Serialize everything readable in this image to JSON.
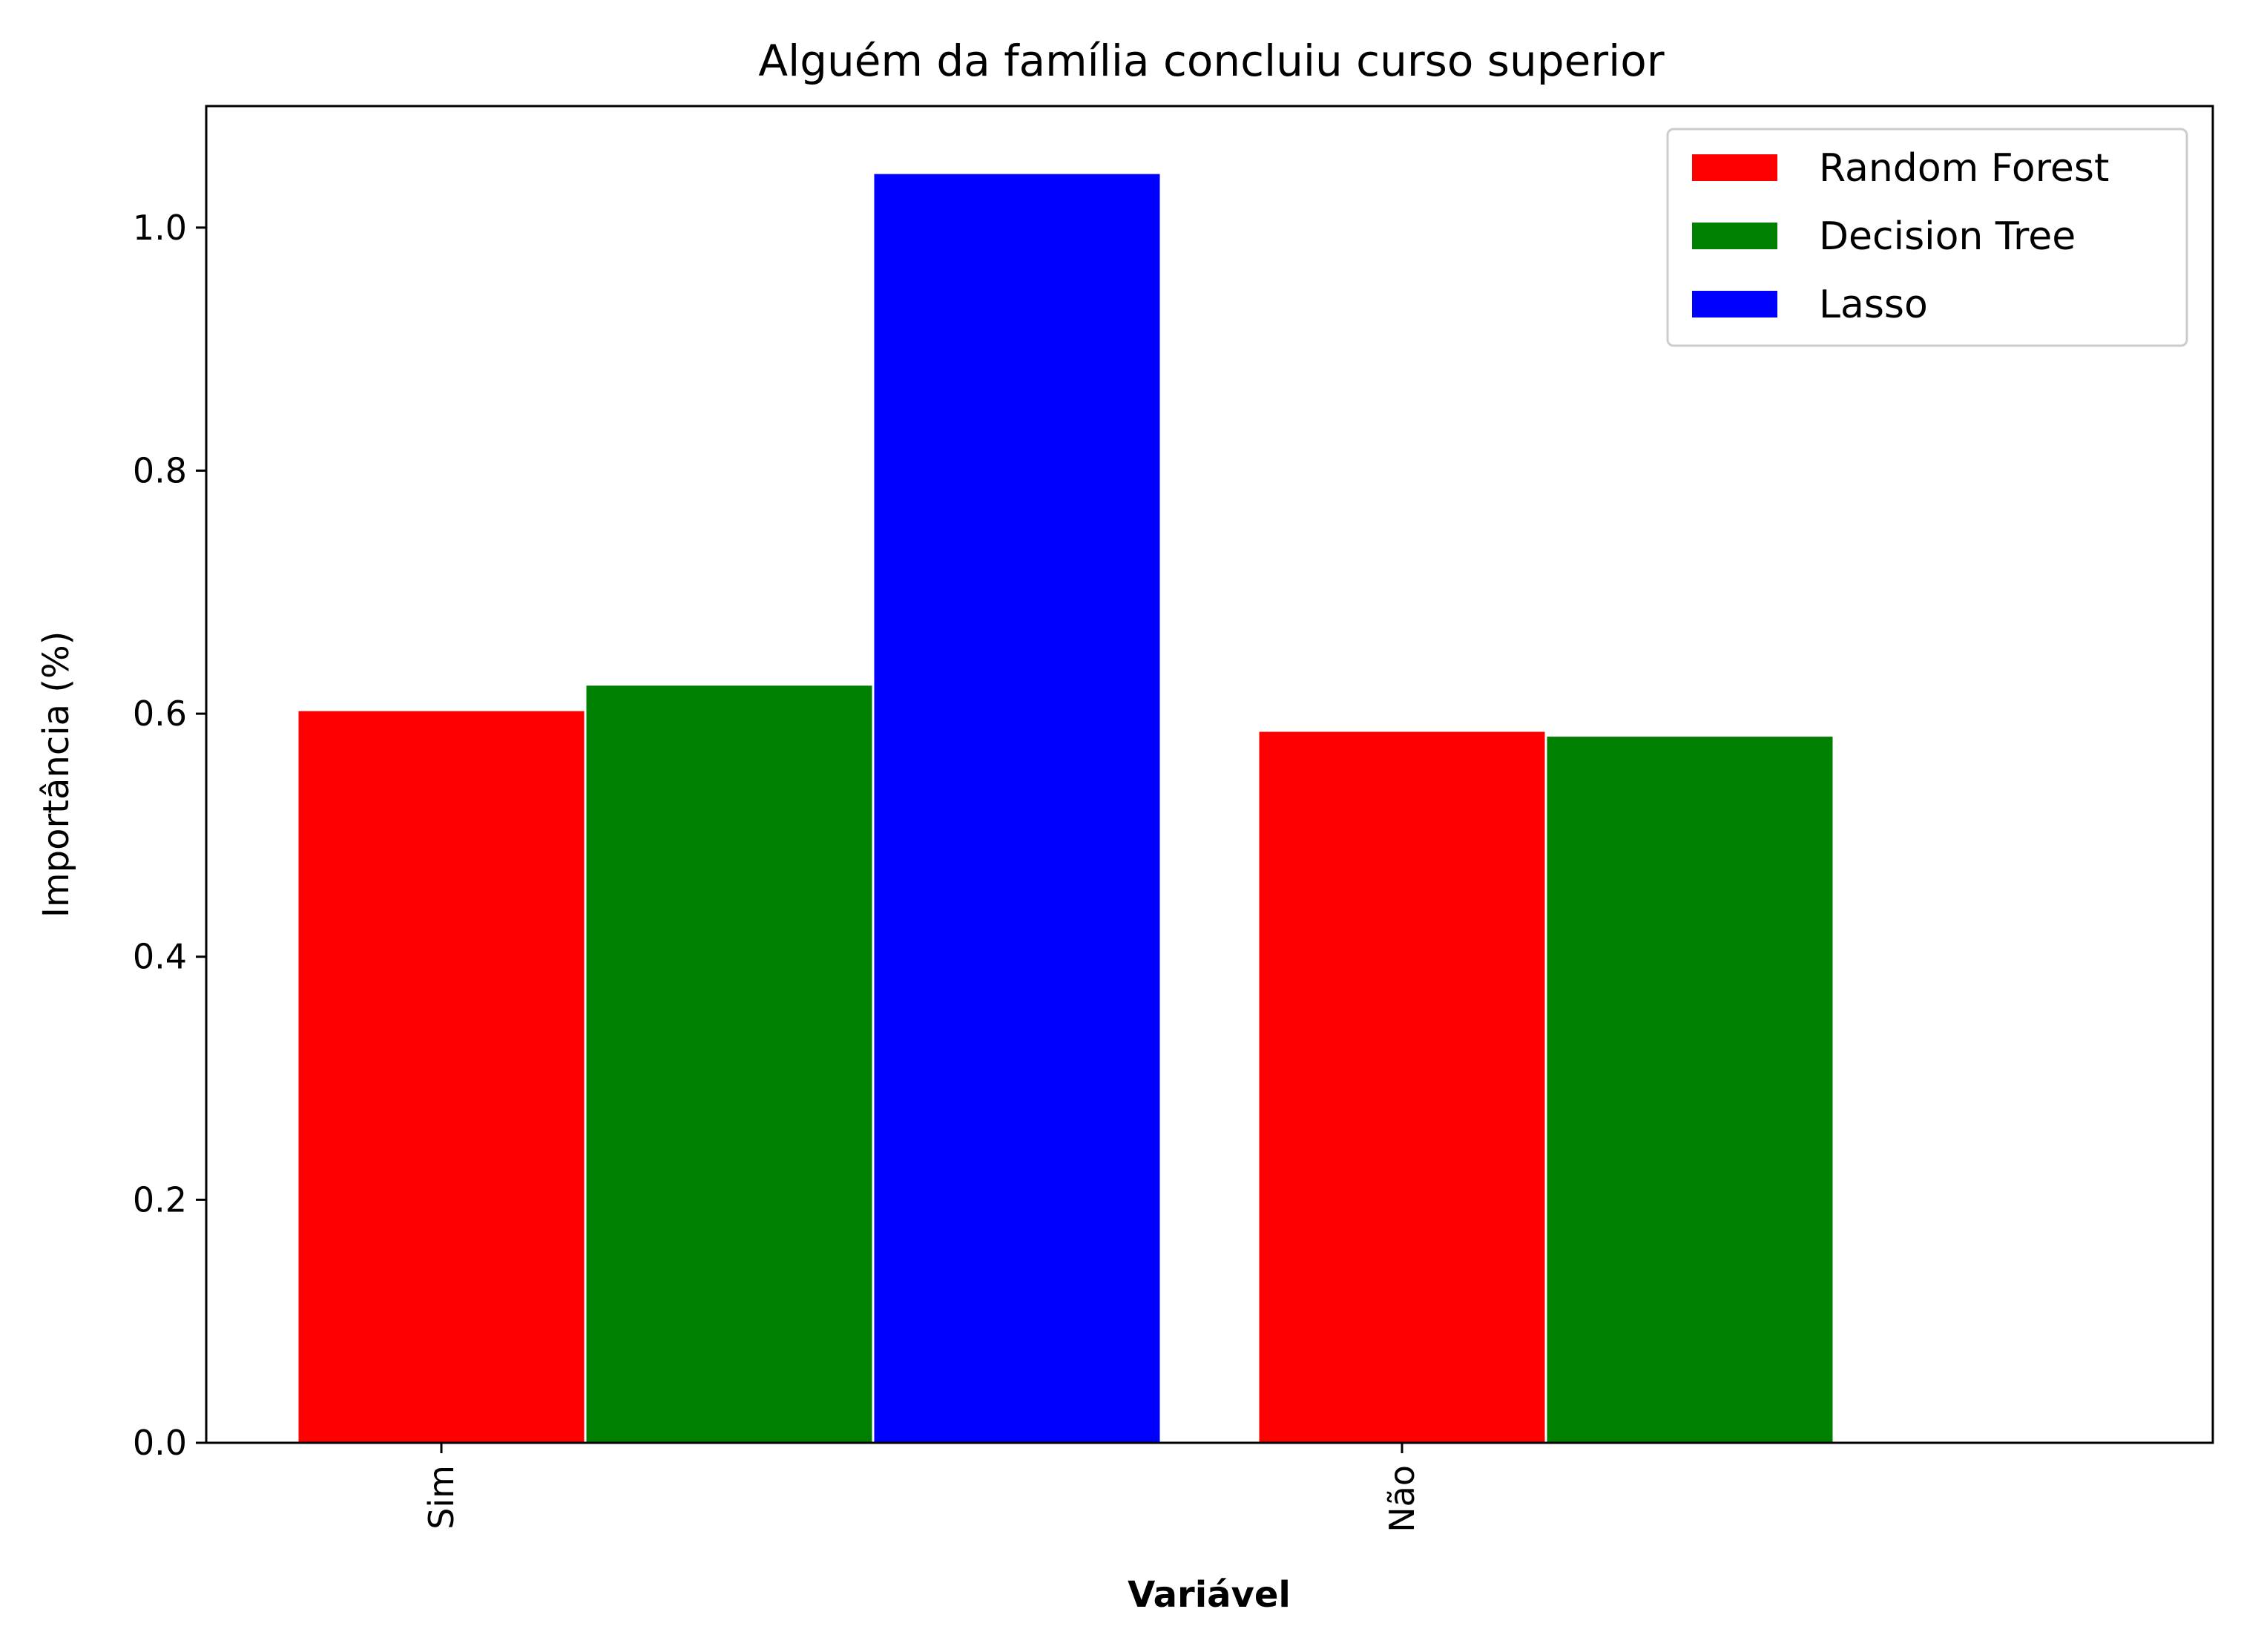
{
  "chart_data": {
    "type": "bar",
    "title": "Alguém da família concluiu curso superior",
    "xlabel": "Variável",
    "ylabel": "Importância (%)",
    "categories": [
      "Sim",
      "Não"
    ],
    "series": [
      {
        "name": "Random Forest",
        "color": "#ff0000",
        "values": [
          0.603,
          0.586
        ]
      },
      {
        "name": "Decision Tree",
        "color": "#008000",
        "values": [
          0.624,
          0.582
        ]
      },
      {
        "name": "Lasso",
        "color": "#0000ff",
        "values": [
          1.045,
          null
        ]
      }
    ],
    "yticks": [
      "0.0",
      "0.2",
      "0.4",
      "0.6",
      "0.8",
      "1.0"
    ],
    "ylim": [
      0,
      1.1
    ],
    "grid": false,
    "legend_position": "top-right"
  }
}
